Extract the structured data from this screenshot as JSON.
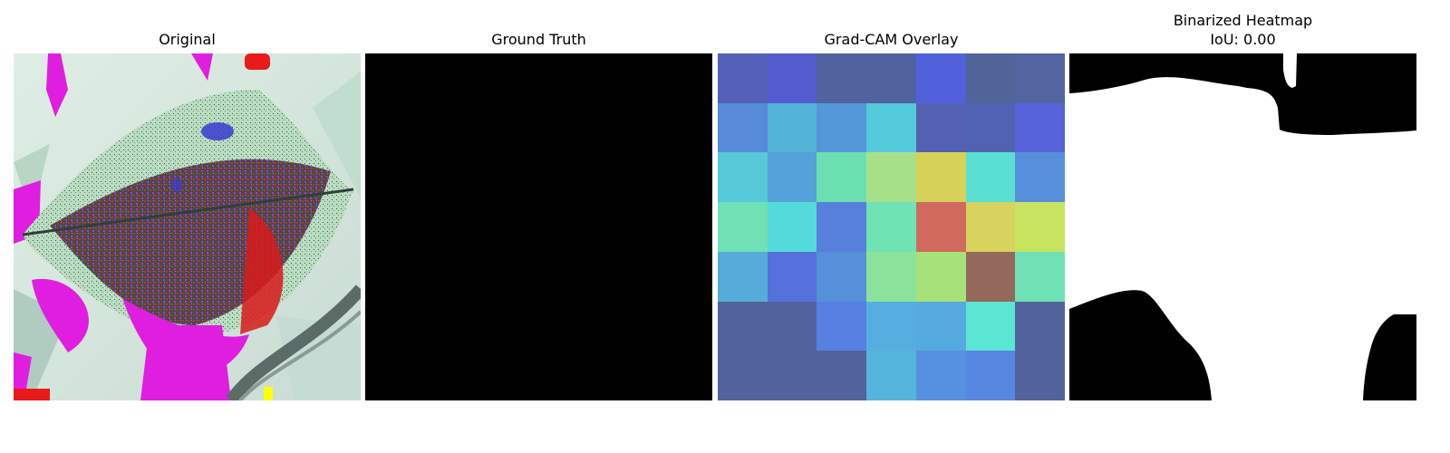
{
  "panels": {
    "original": {
      "title": "Original"
    },
    "ground_truth": {
      "title": "Ground Truth"
    },
    "gradcam": {
      "title": "Grad-CAM Overlay",
      "grid": [
        [
          "#5561b9",
          "#525ccf",
          "#51639f",
          "#51639f",
          "#5161dc",
          "#50649a",
          "#5365a0"
        ],
        [
          "#578bd9",
          "#54b3d9",
          "#5497d8",
          "#54c9db",
          "#5461b2",
          "#5262b2",
          "#5663d9"
        ],
        [
          "#56c9d8",
          "#55a1d9",
          "#6adfb0",
          "#a6e18a",
          "#d6d159",
          "#5adfd3",
          "#5690dc"
        ],
        [
          "#70e1b4",
          "#54dbd9",
          "#5780dc",
          "#70e3b4",
          "#cf6a5c",
          "#d8d25e",
          "#c8e360"
        ],
        [
          "#55acd9",
          "#5571db",
          "#5690db",
          "#8be39b",
          "#a6e17a",
          "#94685b",
          "#6fe1b4"
        ],
        [
          "#51639a",
          "#51639a",
          "#5680e2",
          "#55aedf",
          "#55aadf",
          "#5ae6d3",
          "#51639a"
        ],
        [
          "#51639a",
          "#51639a",
          "#51639a",
          "#55b4dc",
          "#5690e0",
          "#5787e0",
          "#51639a"
        ]
      ]
    },
    "binarized": {
      "title_line1": "Binarized Heatmap",
      "title_line2": "IoU: 0.00"
    }
  },
  "colors": {
    "background": "#ffffff",
    "leaf_magenta": "#e020e0",
    "leaf_red": "#e81a1a",
    "leaf_dark": "#3a4a44",
    "leaf_light": "#c8e8d0",
    "bg_pale": "#d8e8e0"
  }
}
